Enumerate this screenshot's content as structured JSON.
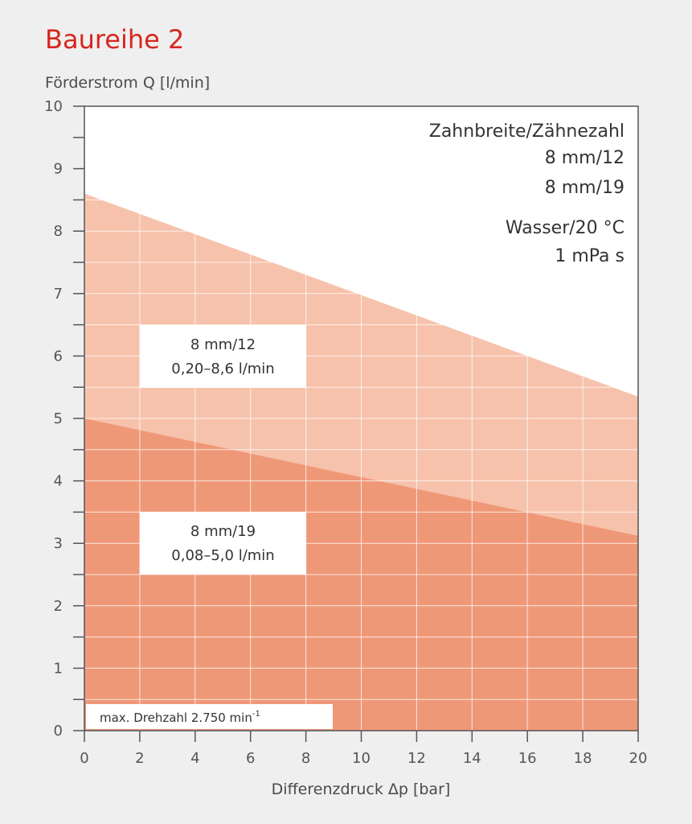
{
  "title": "Baureihe 2",
  "chart_data": {
    "type": "area",
    "ylabel": "Förderstrom Q [l/min]",
    "xlabel": "Differenzdruck Δp [bar]",
    "xlim": [
      0,
      20
    ],
    "ylim": [
      0,
      10
    ],
    "x_ticks": [
      0,
      2,
      4,
      6,
      8,
      10,
      12,
      14,
      16,
      18,
      20
    ],
    "y_ticks": [
      0,
      1,
      2,
      3,
      4,
      5,
      6,
      7,
      8,
      9,
      10
    ],
    "grid": true,
    "series": [
      {
        "name": "8 mm/12",
        "color": "#f7c2ac",
        "x": [
          0,
          20
        ],
        "y": [
          8.6,
          5.35
        ],
        "label_lines": [
          "8 mm/12",
          "0,20–8,6 l/min"
        ]
      },
      {
        "name": "8 mm/19",
        "color": "#ef9878",
        "x": [
          0,
          20
        ],
        "y": [
          5.0,
          3.12
        ],
        "label_lines": [
          "8 mm/19",
          "0,08–5,0 l/min"
        ]
      }
    ],
    "info_lines": [
      "Zahnbreite/Zähnezahl",
      "8 mm/12",
      "8 mm/19"
    ],
    "fluid_lines": [
      "Wasser/20 °C",
      "1 mPa s"
    ],
    "footnote": {
      "text": "max. Drehzahl 2.750 min",
      "superscript": "-1"
    }
  }
}
